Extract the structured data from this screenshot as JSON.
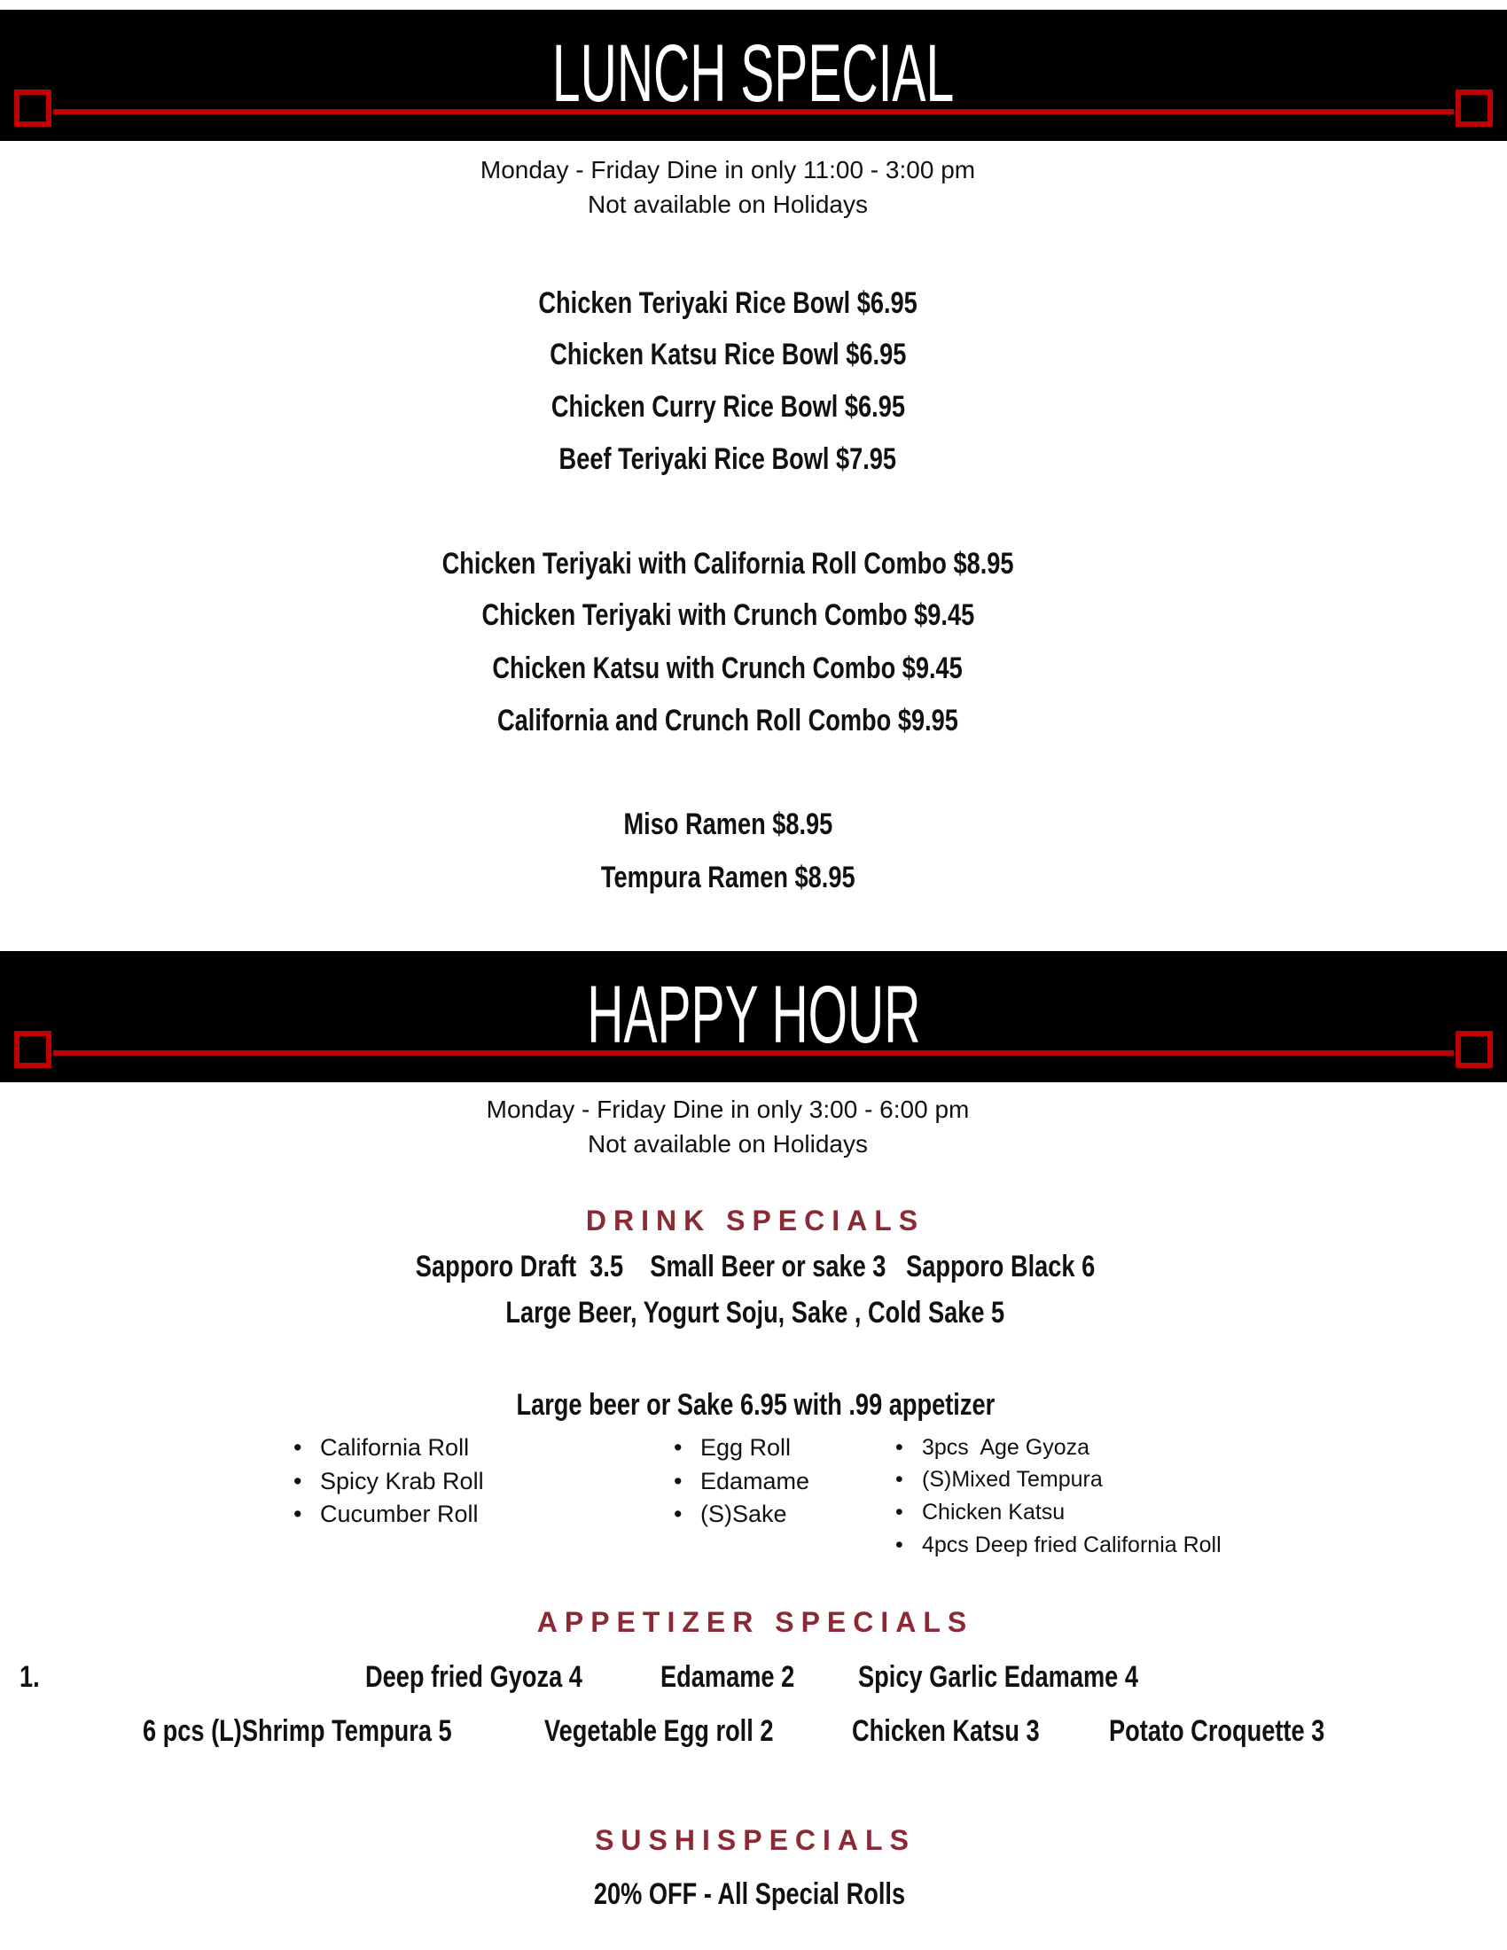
{
  "lunch": {
    "title": "LUNCH SPECIAL",
    "hours": "Monday - Friday Dine in only  11:00 - 3:00 pm",
    "note": "Not available on Holidays",
    "items": [
      "Chicken Teriyaki Rice Bowl  $6.95",
      "Chicken Katsu Rice Bowl  $6.95",
      "Chicken Curry Rice Bowl  $6.95",
      "Beef Teriyaki  Rice Bowl  $7.95",
      "Chicken Teriyaki with California Roll Combo  $8.95",
      "Chicken Teriyaki with Crunch Combo  $9.45",
      "Chicken Katsu with Crunch Combo  $9.45",
      "California and Crunch Roll Combo  $9.95",
      "Miso Ramen  $8.95",
      "Tempura  Ramen  $8.95"
    ]
  },
  "happy": {
    "title": "HAPPY HOUR",
    "hours": "Monday - Friday Dine in only   3:00 - 6:00 pm",
    "note": "Not available on Holidays",
    "drink_heading": "DRINK SPECIALS",
    "drink_lines": [
      "Sapporo Draft  3.5    Small Beer or sake 3   Sapporo Black 6",
      "Large Beer, Yogurt Soju, Sake , Cold Sake 5"
    ],
    "combo_heading": "Large beer or Sake 6.95 with .99 appetizer",
    "col1": [
      "California Roll",
      "Spicy Krab Roll",
      "Cucumber Roll"
    ],
    "col2": [
      "Egg Roll",
      "Edamame",
      "(S)Sake"
    ],
    "col3": [
      "3pcs  Age Gyoza",
      "(S)Mixed Tempura",
      "Chicken Katsu",
      "4pcs Deep fried California Roll"
    ],
    "appetizer_heading": "APPETIZER SPECIALS",
    "list_number": "1.",
    "appetizer_row1": [
      "Deep fried Gyoza 4",
      "Edamame 2",
      "Spicy Garlic Edamame 4"
    ],
    "appetizer_row2": [
      "6 pcs (L)Shrimp Tempura 5",
      "Vegetable Egg roll 2",
      "Chicken Katsu 3",
      "Potato Croquette 3"
    ],
    "sushi_heading": "SUSHISPECIALS",
    "sushi_line": "20% OFF - All Special Rolls"
  },
  "colors": {
    "banner": "#000000",
    "accent_red": "#c00000",
    "heading": "#8b2a35"
  }
}
